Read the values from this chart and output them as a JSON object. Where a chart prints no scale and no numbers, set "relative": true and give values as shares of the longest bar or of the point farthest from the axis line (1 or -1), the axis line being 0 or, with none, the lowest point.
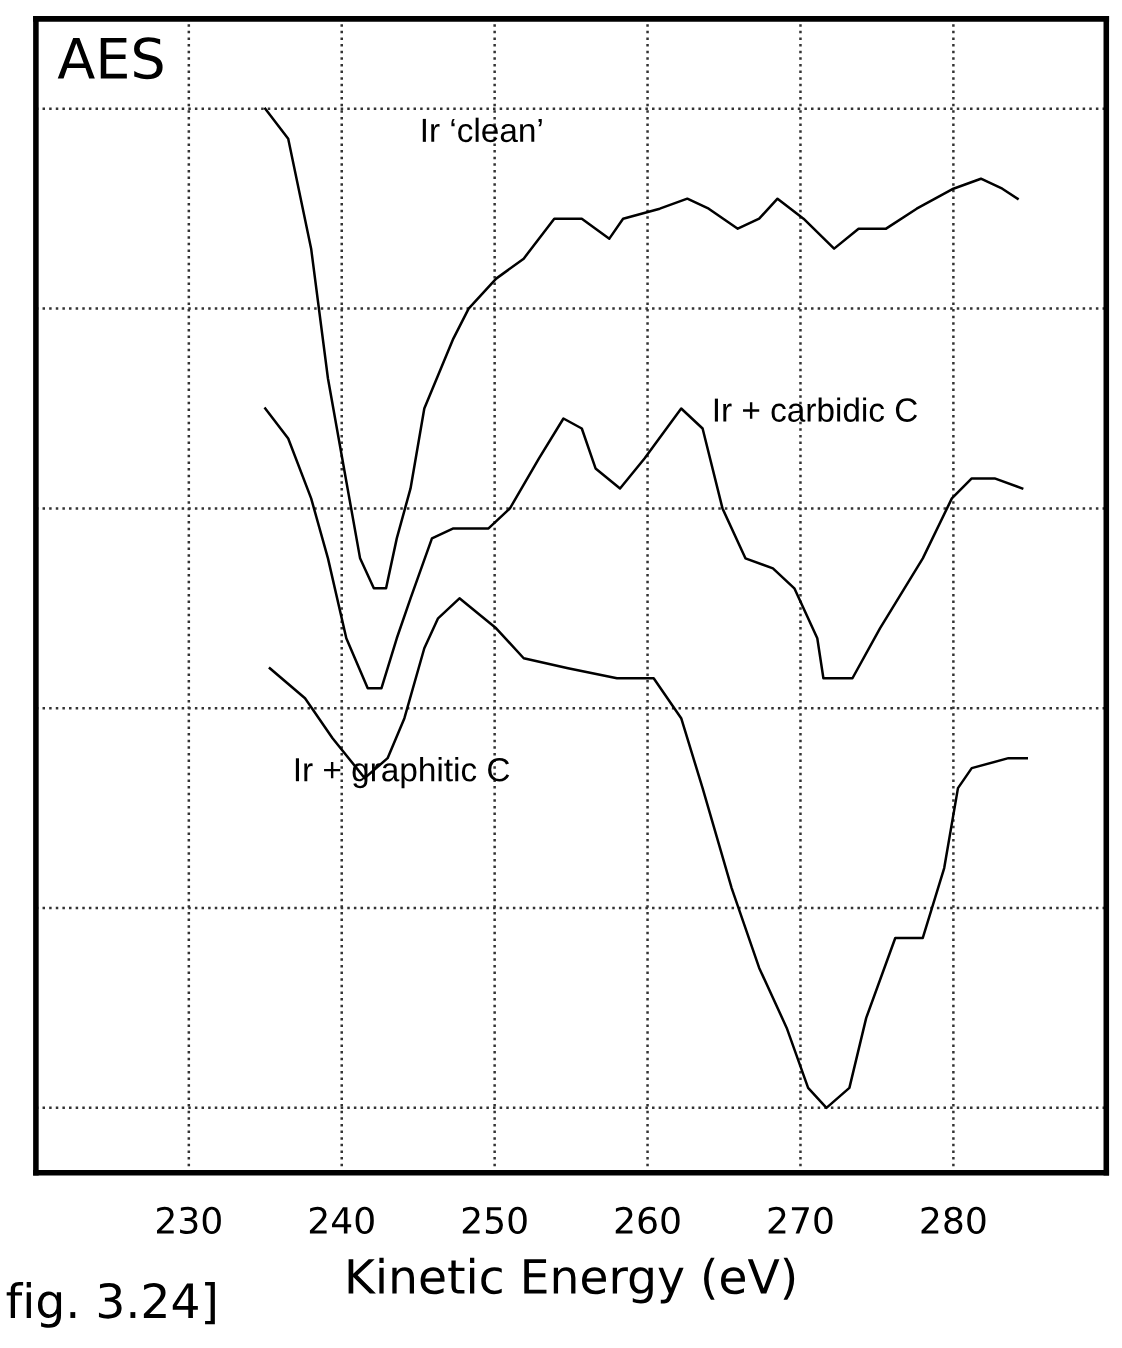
{
  "chart_data": {
    "type": "line",
    "relative": true,
    "xlabel": "Kinetic Energy (eV)",
    "xlim": [
      220,
      290
    ],
    "xticks": [
      230,
      240,
      250,
      260,
      270,
      280
    ],
    "tick_labels": "x",
    "grid": true,
    "legend": false,
    "marker": "none",
    "line_style": "solid",
    "annotations": [
      "AES",
      "fig. 3.24]"
    ],
    "series": [
      {
        "name": "Ir ‘clean’",
        "color": "#000000",
        "x": [
          235,
          236.5,
          238,
          239.1,
          240.5,
          241.2,
          242.1,
          242.9,
          243.6,
          244.5,
          245.4,
          247.3,
          248.3,
          250.1,
          251.9,
          253.9,
          255.7,
          257.5,
          258.4,
          260.8,
          262.6,
          264,
          265.9,
          267.3,
          268.5,
          270.2,
          272.2,
          273.8,
          275.6,
          277.6,
          280,
          281.8,
          283.2,
          284.2
        ],
        "values": [
          1.0,
          0.97,
          0.86,
          0.73,
          0.61,
          0.55,
          0.52,
          0.52,
          0.57,
          0.62,
          0.7,
          0.77,
          0.8,
          0.83,
          0.85,
          0.89,
          0.89,
          0.87,
          0.89,
          0.9,
          0.91,
          0.9,
          0.88,
          0.89,
          0.91,
          0.89,
          0.86,
          0.88,
          0.88,
          0.9,
          0.92,
          0.93,
          0.92,
          0.91
        ]
      },
      {
        "name": "Ir + carbidic C",
        "color": "#000000",
        "x": [
          235,
          236.5,
          238,
          239.1,
          240.3,
          241.7,
          242.6,
          243.6,
          244.5,
          245.9,
          247.3,
          249.6,
          251,
          252.9,
          254.5,
          255.7,
          256.6,
          258.2,
          259.8,
          262.2,
          263.6,
          264.9,
          266.4,
          268.2,
          269.6,
          271.1,
          271.5,
          273.4,
          275.2,
          275.6,
          278,
          279.9,
          281.2,
          282.7,
          284.5
        ],
        "values": [
          0.7,
          0.67,
          0.61,
          0.55,
          0.47,
          0.42,
          0.42,
          0.47,
          0.51,
          0.57,
          0.58,
          0.58,
          0.6,
          0.65,
          0.69,
          0.68,
          0.64,
          0.62,
          0.65,
          0.7,
          0.68,
          0.6,
          0.55,
          0.54,
          0.52,
          0.47,
          0.43,
          0.43,
          0.48,
          0.49,
          0.55,
          0.61,
          0.63,
          0.63,
          0.62
        ]
      },
      {
        "name": "Ir + graphitic C",
        "color": "#000000",
        "x": [
          235.3,
          237.6,
          239.4,
          241.5,
          243,
          244.1,
          245.4,
          246.3,
          247.7,
          250.1,
          251.9,
          254.8,
          258,
          260.4,
          262.2,
          263.6,
          265.5,
          267.3,
          269.1,
          270.5,
          271.7,
          273.2,
          274.3,
          276.2,
          278,
          279.4,
          280.3,
          281.2,
          283.6,
          284.8
        ],
        "values": [
          0.44,
          0.41,
          0.37,
          0.33,
          0.35,
          0.39,
          0.46,
          0.49,
          0.51,
          0.48,
          0.45,
          0.44,
          0.43,
          0.43,
          0.39,
          0.32,
          0.22,
          0.14,
          0.08,
          0.02,
          0.0,
          0.02,
          0.09,
          0.17,
          0.17,
          0.24,
          0.32,
          0.34,
          0.35,
          0.35
        ]
      }
    ]
  }
}
